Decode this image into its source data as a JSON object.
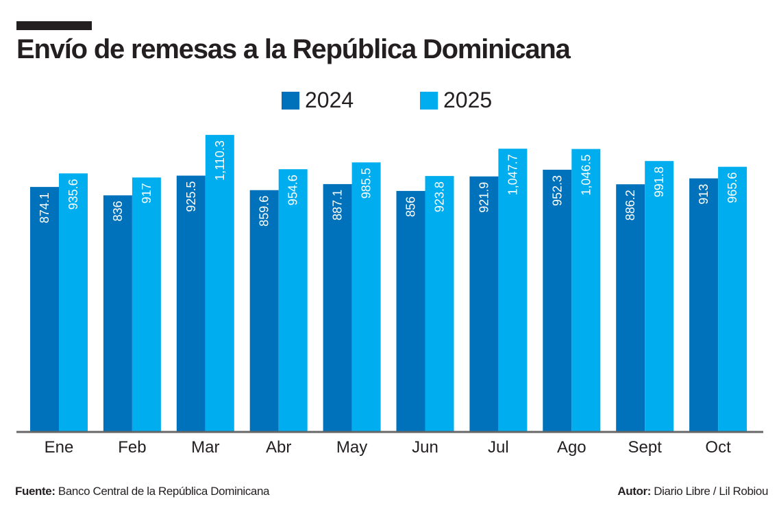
{
  "title": "Envío de remesas a la República Dominicana",
  "footer": {
    "source_label": "Fuente:",
    "source": "Banco Central de la República Dominicana",
    "author_label": "Autor:",
    "author": "Diario Libre / Lil Robiou"
  },
  "chart_data": {
    "type": "bar",
    "title": "Envío de remesas a la República Dominicana",
    "xlabel": "",
    "ylabel": "",
    "legend_position": "top-center",
    "grid": false,
    "categories": [
      "Ene",
      "Feb",
      "Mar",
      "Abr",
      "May",
      "Jun",
      "Jul",
      "Ago",
      "Sept",
      "Oct"
    ],
    "series": [
      {
        "name": "2024",
        "color": "#0072bc",
        "values": [
          874.1,
          836,
          925.5,
          859.6,
          887.1,
          856,
          921.9,
          952.3,
          886.2,
          913
        ],
        "labels": [
          "874.1",
          "836",
          "925.5",
          "859.6",
          "887.1",
          "856",
          "921.9",
          "952.3",
          "886.2",
          "913"
        ]
      },
      {
        "name": "2025",
        "color": "#00aeef",
        "values": [
          935.6,
          917,
          1110.3,
          954.6,
          985.5,
          923.8,
          1047.7,
          1046.5,
          991.8,
          965.6
        ],
        "labels": [
          "935.6",
          "917",
          "1,110.3",
          "954.6",
          "985.5",
          "923.8",
          "1,047.7",
          "1,046.5",
          "991.8",
          "965.6"
        ]
      }
    ]
  }
}
